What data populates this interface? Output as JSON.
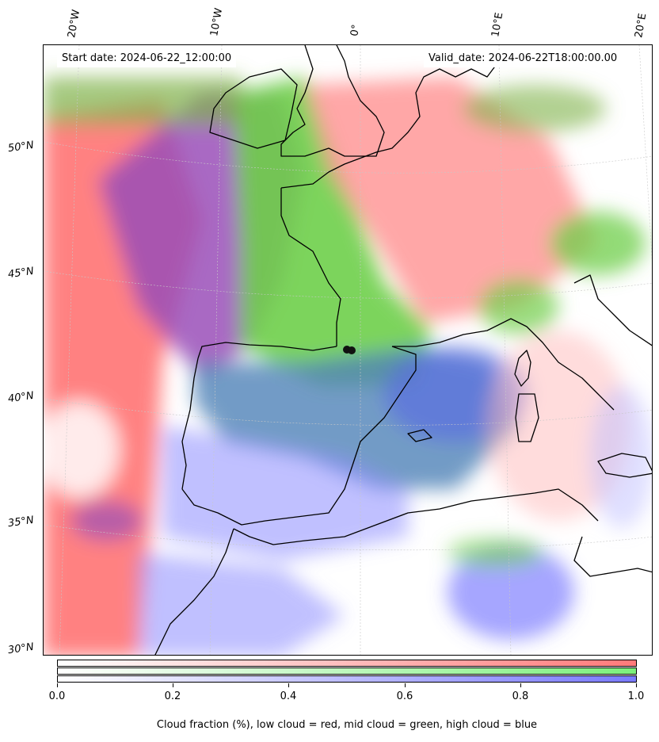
{
  "header": {
    "start_date": "Start date: 2024-06-22_12:00:00",
    "valid_date": "Valid_date: 2024-06-22T18:00:00.00"
  },
  "longitude_labels": [
    "20°W",
    "10°W",
    "0°",
    "10°E",
    "20°E"
  ],
  "latitude_labels": [
    "50°N",
    "45°N",
    "40°N",
    "35°N",
    "30°N"
  ],
  "colorbar": {
    "tick_labels": [
      "0.0",
      "0.2",
      "0.4",
      "0.6",
      "0.8",
      "1.0"
    ],
    "caption": "Cloud fraction (%), low cloud = red, mid cloud = green, high cloud = blue",
    "colors": {
      "low": "#ff7a7a",
      "mid": "#7cf07c",
      "high": "#7a7aff"
    }
  },
  "colors": {
    "coastline": "#000000",
    "low_cloud": "#ff6b6b",
    "mid_cloud": "#6fcf4a",
    "high_cloud": "#6b6bff",
    "mixed_low_high": "#9a4fb8"
  },
  "legend": {
    "station_marker": "black-dot"
  }
}
